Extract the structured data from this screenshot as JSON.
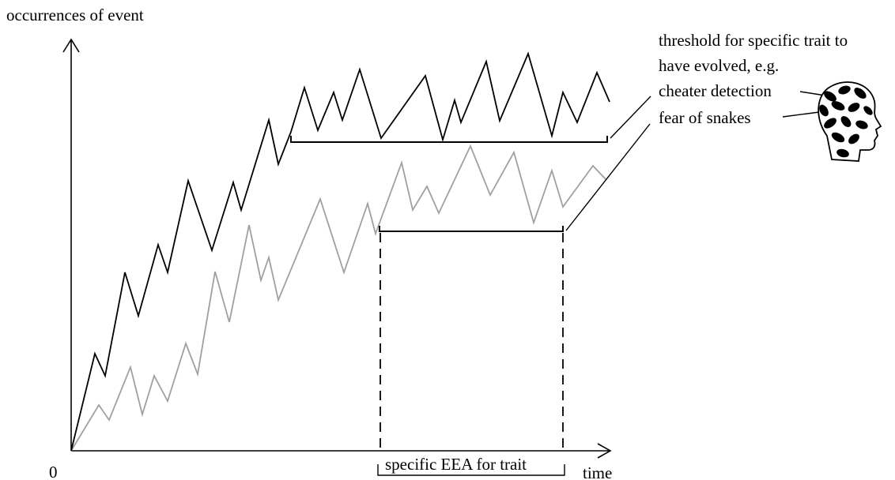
{
  "labels": {
    "y_axis": "occurrences of event",
    "origin": "0",
    "x_axis": "time",
    "threshold_line1": "threshold for specific trait to",
    "threshold_line2": "have evolved, e.g.",
    "example1": "cheater detection",
    "example2": "fear of snakes",
    "eea": "specific EEA for trait"
  },
  "colors": {
    "cheater_series": "#000000",
    "snakes_series": "#a0a0a0",
    "axes": "#000000"
  },
  "icons": {
    "head": "head-silhouette-with-patterned-brain-icon"
  }
}
